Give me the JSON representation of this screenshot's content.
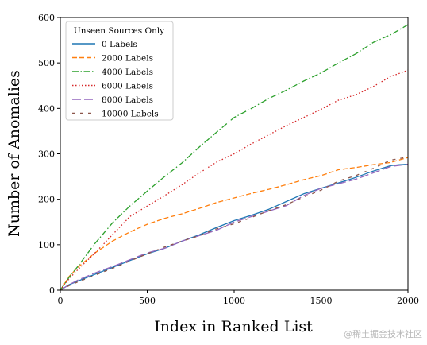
{
  "chart_data": {
    "type": "line",
    "xlabel": "Index in Ranked List",
    "ylabel": "Number of Anomalies",
    "xlim": [
      0,
      2000
    ],
    "ylim": [
      0,
      600
    ],
    "xticks": [
      0,
      500,
      1000,
      1500,
      2000
    ],
    "yticks": [
      0,
      100,
      200,
      300,
      400,
      500,
      600
    ],
    "grid": false,
    "legend": {
      "title": "Unseen Sources Only",
      "placement": "top-left"
    },
    "series": [
      {
        "name": "0 Labels",
        "color": "#1f77b4",
        "style": "solid",
        "x": [
          0,
          50,
          100,
          200,
          300,
          400,
          500,
          600,
          700,
          800,
          900,
          1000,
          1100,
          1200,
          1300,
          1400,
          1500,
          1600,
          1700,
          1800,
          1900,
          1950,
          2000
        ],
        "y": [
          0,
          12,
          20,
          35,
          50,
          65,
          80,
          92,
          108,
          122,
          138,
          153,
          165,
          178,
          195,
          212,
          224,
          236,
          248,
          262,
          274,
          276,
          277
        ]
      },
      {
        "name": "2000 Labels",
        "color": "#ff7f0e",
        "style": "dashed",
        "x": [
          0,
          50,
          100,
          200,
          300,
          400,
          500,
          600,
          700,
          800,
          900,
          1000,
          1100,
          1200,
          1300,
          1400,
          1500,
          1600,
          1700,
          1800,
          1900,
          2000
        ],
        "y": [
          0,
          30,
          50,
          82,
          108,
          128,
          145,
          158,
          168,
          180,
          193,
          203,
          213,
          222,
          232,
          243,
          252,
          265,
          270,
          276,
          281,
          292
        ]
      },
      {
        "name": "4000 Labels",
        "color": "#2ca02c",
        "style": "dashdot",
        "x": [
          0,
          50,
          100,
          200,
          300,
          400,
          500,
          600,
          700,
          800,
          900,
          1000,
          1100,
          1200,
          1300,
          1400,
          1500,
          1600,
          1700,
          1800,
          1900,
          2000
        ],
        "y": [
          0,
          28,
          52,
          103,
          148,
          185,
          218,
          250,
          280,
          315,
          348,
          380,
          400,
          422,
          440,
          460,
          478,
          500,
          520,
          545,
          562,
          584
        ]
      },
      {
        "name": "6000 Labels",
        "color": "#d62728",
        "style": "dotted",
        "x": [
          0,
          50,
          100,
          200,
          300,
          400,
          500,
          600,
          700,
          800,
          900,
          1000,
          1100,
          1200,
          1300,
          1400,
          1500,
          1600,
          1700,
          1800,
          1900,
          2000
        ],
        "y": [
          0,
          25,
          45,
          82,
          122,
          162,
          185,
          208,
          232,
          258,
          282,
          300,
          322,
          342,
          362,
          380,
          398,
          418,
          430,
          448,
          470,
          484
        ]
      },
      {
        "name": "8000 Labels",
        "color": "#9467bd",
        "style": "longdash",
        "x": [
          0,
          50,
          100,
          200,
          300,
          400,
          500,
          600,
          700,
          800,
          900,
          1000,
          1100,
          1200,
          1300,
          1400,
          1500,
          1600,
          1700,
          1800,
          1900,
          2000
        ],
        "y": [
          0,
          12,
          22,
          38,
          52,
          67,
          82,
          92,
          108,
          120,
          132,
          150,
          162,
          174,
          186,
          208,
          224,
          234,
          244,
          258,
          272,
          277
        ]
      },
      {
        "name": "10000 Labels",
        "color": "#8c564b",
        "style": "loosedash",
        "x": [
          0,
          50,
          100,
          200,
          300,
          400,
          500,
          600,
          700,
          800,
          900,
          1000,
          1100,
          1200,
          1300,
          1400,
          1500,
          1600,
          1700,
          1800,
          1900,
          2000
        ],
        "y": [
          0,
          10,
          18,
          33,
          48,
          64,
          80,
          95,
          108,
          120,
          135,
          146,
          160,
          175,
          188,
          205,
          220,
          240,
          252,
          268,
          286,
          293
        ]
      }
    ]
  },
  "watermark": "@稀土掘金技术社区"
}
